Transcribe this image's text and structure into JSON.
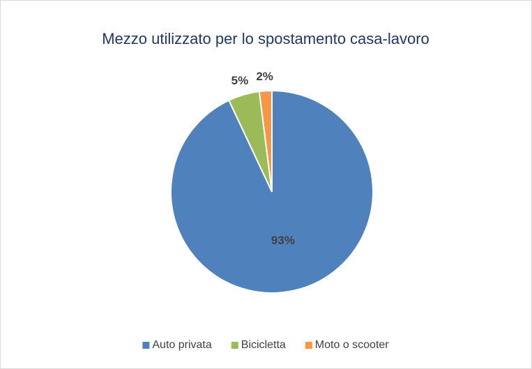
{
  "chart_data": {
    "type": "pie",
    "title": "Mezzo utilizzato per lo spostamento casa-lavoro",
    "categories": [
      "Auto privata",
      "Bicicletta",
      "Moto o scooter"
    ],
    "values": [
      93,
      5,
      2
    ],
    "value_labels": [
      "93%",
      "5%",
      "2%"
    ],
    "colors": [
      "#4f81bd",
      "#9bbb59",
      "#f79646"
    ],
    "legend": "bottom"
  }
}
